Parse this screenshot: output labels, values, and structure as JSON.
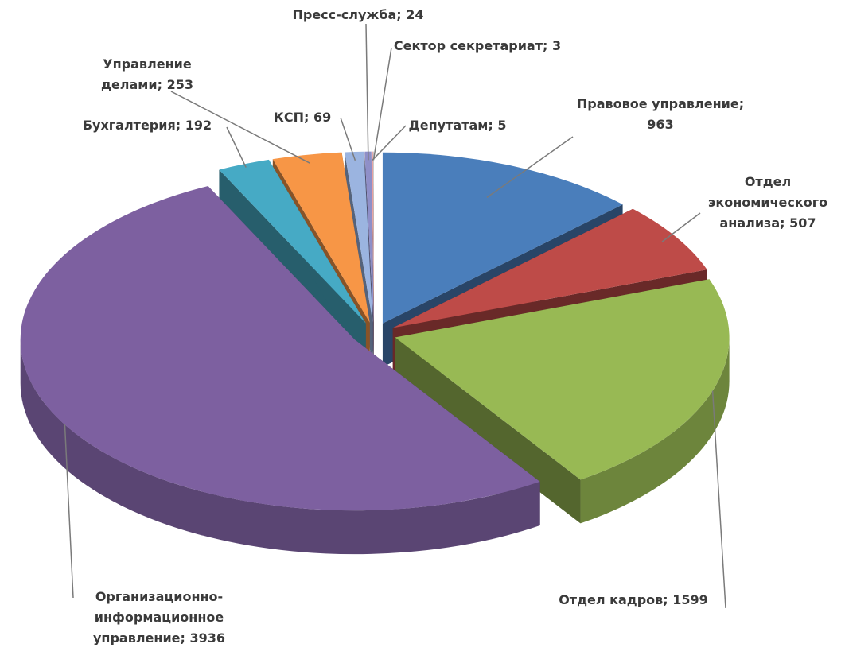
{
  "chart_data": {
    "type": "pie",
    "categories": [
      "Правовое управление",
      "Отдел экономического анализа",
      "Отдел кадров",
      "Организационно-информационное управление",
      "Бухгалтерия",
      "Управление делами",
      "КСП",
      "Пресс-служба",
      "Депутатам",
      "Сектор секретариат"
    ],
    "values": [
      963,
      507,
      1599,
      3936,
      192,
      253,
      69,
      24,
      5,
      3
    ],
    "colors": [
      "#4a7ebb",
      "#be4b48",
      "#98b954",
      "#7d60a0",
      "#46aac5",
      "#f79646",
      "#9bb4e0",
      "#8f8fc8",
      "#e8a0a0",
      "#c8c8c8"
    ],
    "label_separator": "; "
  }
}
